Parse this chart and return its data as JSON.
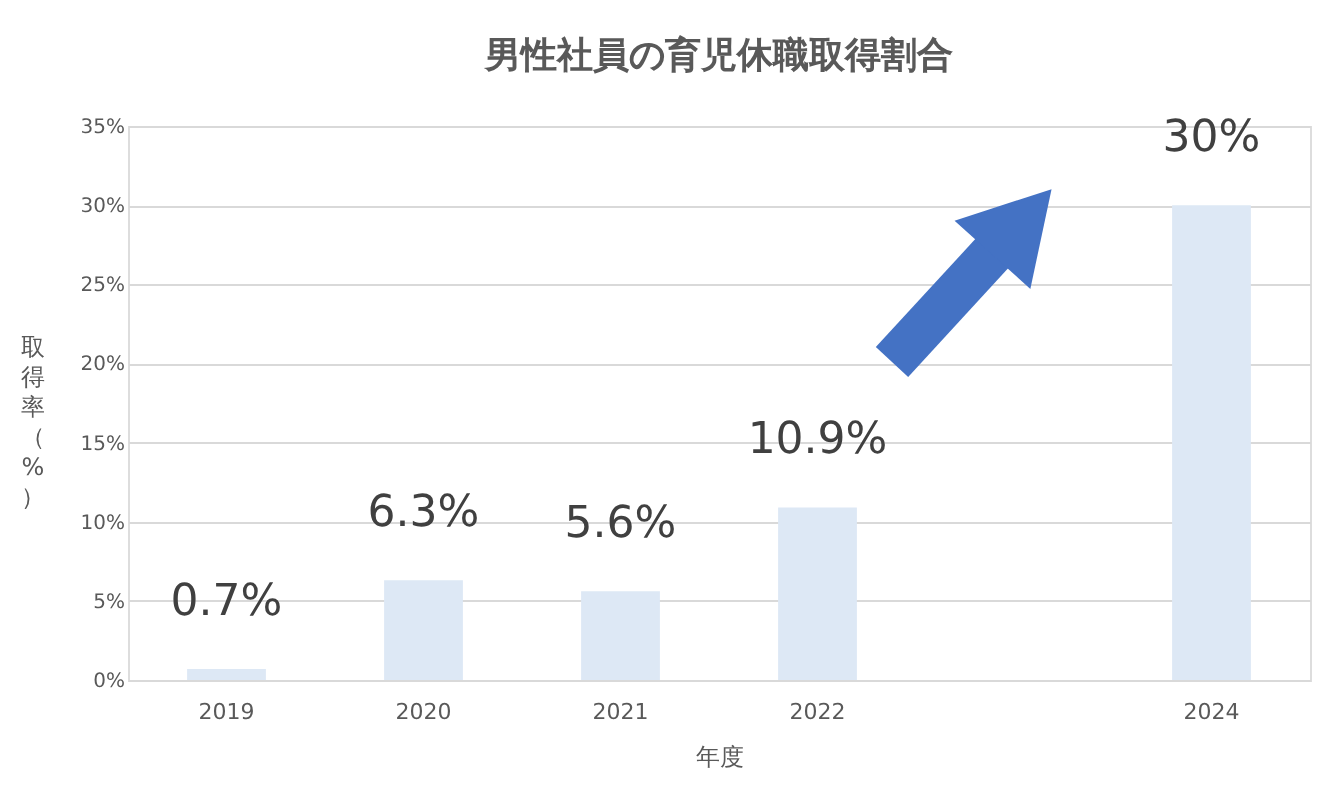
{
  "chart_data": {
    "type": "bar",
    "title": "男性社員の育児休職取得割合",
    "xlabel": "年度",
    "ylabel": "取得率（%）",
    "categories": [
      "2019",
      "2020",
      "2021",
      "2022",
      null,
      "2024"
    ],
    "values": [
      0.7,
      6.3,
      5.6,
      10.9,
      null,
      30
    ],
    "value_labels": [
      "0.7%",
      "6.3%",
      "5.6%",
      "10.9%",
      null,
      "30%"
    ],
    "color": "#dde8f5",
    "ylim": [
      0,
      35
    ],
    "yticks": [
      {
        "value": 0,
        "label": "0%"
      },
      {
        "value": 5,
        "label": "5%"
      },
      {
        "value": 10,
        "label": "10%"
      },
      {
        "value": 15,
        "label": "15%"
      },
      {
        "value": 20,
        "label": "20%"
      },
      {
        "value": 25,
        "label": "25%"
      },
      {
        "value": 30,
        "label": "30%"
      },
      {
        "value": 35,
        "label": "35%"
      }
    ],
    "grid": "y"
  }
}
